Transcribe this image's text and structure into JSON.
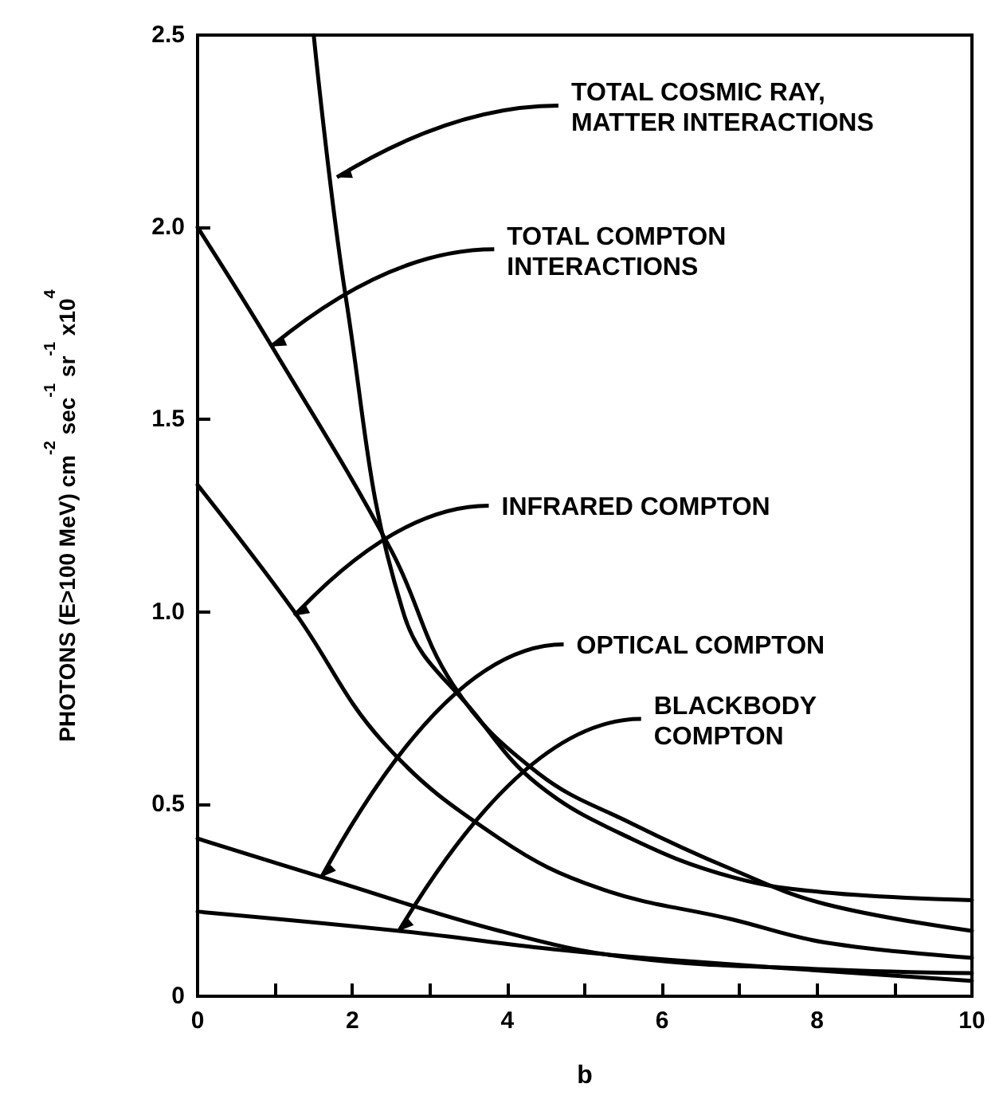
{
  "chart_data": {
    "type": "line",
    "xlabel": "b",
    "ylabel": "PHOTONS (E>100 MeV) cm$^{-2}$ sec$^{-1}$ sr$^{-1}$ x10$^{4}$",
    "xlim": [
      0,
      10
    ],
    "ylim": [
      0,
      2.5
    ],
    "xticks": [
      0,
      {
        "value": 1,
        "label": null
      },
      2,
      {
        "value": 3,
        "label": null
      },
      4,
      {
        "value": 5,
        "label": null
      },
      6,
      {
        "value": 7,
        "label": null
      },
      8,
      {
        "value": 9,
        "label": null
      },
      10
    ],
    "yticks": [
      0,
      0.5,
      {
        "value": 1,
        "label": "1.0"
      },
      1.5,
      {
        "value": 2,
        "label": "2.0"
      },
      2.5
    ],
    "grid": false,
    "marker": "none",
    "line_style": "solid",
    "series": [
      {
        "color": "#000000",
        "x": [
          1.5,
          1.92,
          2.67,
          3.6,
          4.4,
          5.6,
          6.9,
          8.1,
          10
        ],
        "values": [
          2.5,
          1.81,
          0.99,
          0.73,
          0.55,
          0.41,
          0.31,
          0.27,
          0.25
        ]
      },
      {
        "color": "#000000",
        "x": [
          0,
          0.96,
          2.5,
          3.3,
          4.4,
          5.6,
          6.9,
          8.1,
          10
        ],
        "values": [
          2.0,
          1.69,
          1.16,
          0.81,
          0.58,
          0.45,
          0.33,
          0.24,
          0.17
        ]
      },
      {
        "color": "#000000",
        "x": [
          0,
          1.25,
          2.4,
          3.9,
          5.2,
          6.9,
          8.1,
          10
        ],
        "values": [
          1.33,
          1.0,
          0.66,
          0.41,
          0.28,
          0.2,
          0.14,
          0.1
        ]
      },
      {
        "color": "#000000",
        "x": [
          0,
          1.6,
          3.9,
          5.6,
          8.1,
          10
        ],
        "values": [
          0.41,
          0.31,
          0.17,
          0.1,
          0.07,
          0.06
        ]
      },
      {
        "color": "#000000",
        "x": [
          0,
          2.6,
          4.7,
          6.4,
          10
        ],
        "values": [
          0.22,
          0.17,
          0.12,
          0.09,
          0.04
        ]
      }
    ],
    "annotations": [
      {
        "text": "TOTAL COSMIC RAY,\nMATTER INTERACTIONS",
        "x": 1.8,
        "y": 2.13
      },
      {
        "text": "TOTAL COMPTON\nINTERACTIONS",
        "x": 0.95,
        "y": 1.69
      },
      {
        "text": "INFRARED COMPTON",
        "x": 1.25,
        "y": 0.99
      },
      {
        "text": "OPTICAL COMPTON",
        "x": 1.6,
        "y": 0.31
      },
      {
        "text": "BLACKBODY\nCOMPTON",
        "x": 2.6,
        "y": 0.17
      }
    ]
  }
}
